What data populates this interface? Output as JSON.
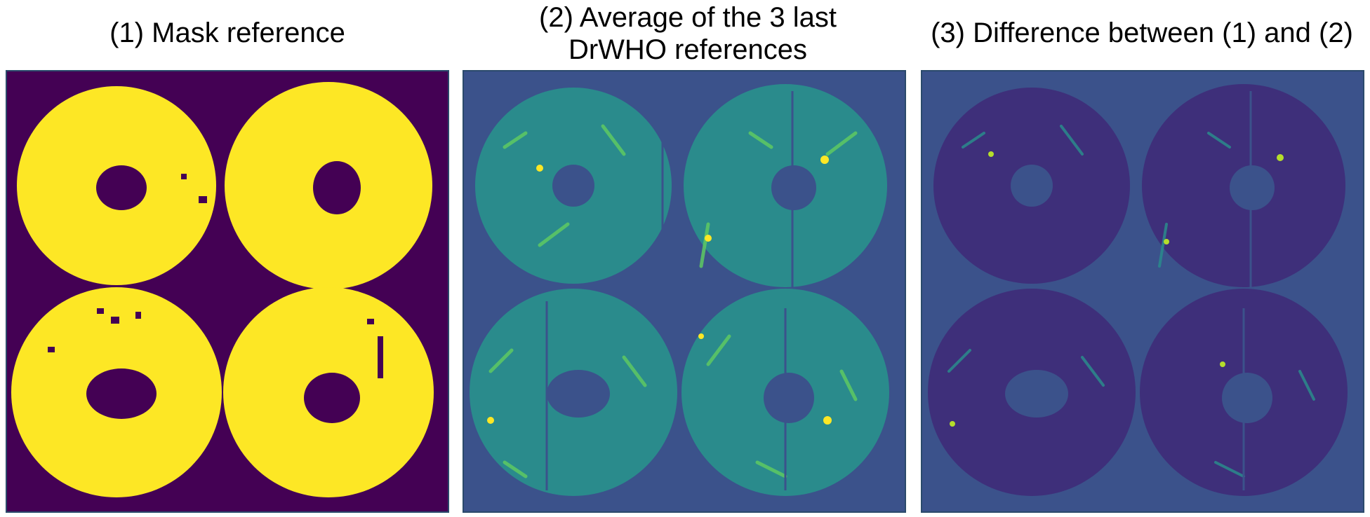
{
  "figure": {
    "panels": [
      {
        "id": "mask",
        "title": "(1) Mask reference",
        "colormap": "binary",
        "colors": {
          "background": "#440154",
          "foreground": "#fde725"
        }
      },
      {
        "id": "average",
        "title": "(2) Average of the 3 last\nDrWHO references",
        "colormap": "viridis",
        "colors": {
          "background": "#3b528b",
          "ring": "#2a8b8c",
          "streak": "#5ec962",
          "highlight": "#fde725"
        }
      },
      {
        "id": "difference",
        "title": "(3) Difference between (1) and (2)",
        "colormap": "viridis",
        "colors": {
          "background": "#3b528b",
          "ring": "#3e2f7a",
          "streak": "#2a8b8c",
          "highlight": "#b5de2b"
        }
      }
    ]
  }
}
